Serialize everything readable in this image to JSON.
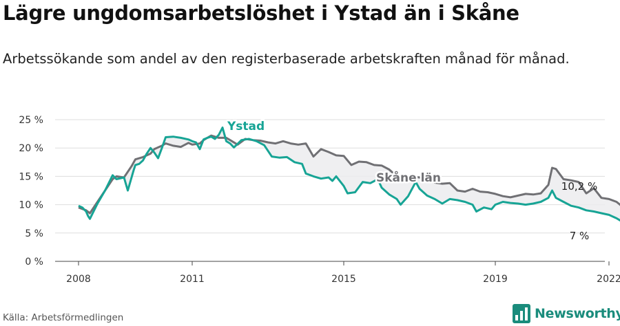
{
  "header": {
    "title": "Lägre ungdomsarbetslöshet i Ystad än i Skåne",
    "subtitle": "Arbetssökande som andel av den registerbaserade arbetskraften månad för månad."
  },
  "footer": {
    "source": "Källa: Arbetsförmedlingen",
    "brand": "Newsworthy"
  },
  "colors": {
    "ystad": "#17a495",
    "skane": "#707074",
    "grid": "#dddddd",
    "brand": "#1a8c7c"
  },
  "chart_data": {
    "type": "line",
    "title": "Lägre ungdomsarbetslöshet i Ystad än i Skåne",
    "xlabel": "",
    "ylabel": "",
    "xlim": [
      2008,
      2022.6
    ],
    "ylim": [
      0,
      25
    ],
    "y_ticks": [
      0,
      5,
      10,
      15,
      20,
      25
    ],
    "y_tick_labels": [
      "0 %",
      "5 %",
      "10 %",
      "15 %",
      "20 %",
      "25 %"
    ],
    "x_ticks": [
      2008,
      2011,
      2015,
      2019,
      2022
    ],
    "x_tick_labels": [
      "2008",
      "2011",
      "2015",
      "2019",
      "2022"
    ],
    "grid": true,
    "series": [
      {
        "name": "Ystad",
        "label": "Ystad",
        "end_label": "7 %",
        "x": [
          2008.0,
          2008.1,
          2008.2,
          2008.25,
          2008.3,
          2008.5,
          2008.7,
          2008.9,
          2009.0,
          2009.2,
          2009.3,
          2009.45,
          2009.5,
          2009.6,
          2009.7,
          2009.8,
          2009.9,
          2010.0,
          2010.1,
          2010.2,
          2010.3,
          2010.5,
          2010.7,
          2010.9,
          2011.0,
          2011.1,
          2011.2,
          2011.3,
          2011.4,
          2011.5,
          2011.6,
          2011.7,
          2011.8,
          2011.9,
          2012.0,
          2012.1,
          2012.3,
          2012.5,
          2012.7,
          2012.9,
          2013.0,
          2013.1,
          2013.3,
          2013.5,
          2013.7,
          2013.9,
          2014.0,
          2014.2,
          2014.4,
          2014.6,
          2014.7,
          2014.8,
          2015.0,
          2015.1,
          2015.3,
          2015.5,
          2015.7,
          2015.9,
          2016.0,
          2016.2,
          2016.4,
          2016.5,
          2016.7,
          2016.9,
          2017.0,
          2017.2,
          2017.4,
          2017.6,
          2017.8,
          2018.0,
          2018.2,
          2018.4,
          2018.5,
          2018.7,
          2018.9,
          2019.0,
          2019.2,
          2019.4,
          2019.6,
          2019.8,
          2020.0,
          2020.2,
          2020.4,
          2020.5,
          2020.6,
          2020.8,
          2021.0,
          2021.2,
          2021.4,
          2021.6,
          2021.8,
          2022.0,
          2022.2,
          2022.3,
          2022.4,
          2022.55
        ],
        "values": [
          9.8,
          9.5,
          8.8,
          8.0,
          7.5,
          10.2,
          12.5,
          15.2,
          14.5,
          14.8,
          12.5,
          16.0,
          17.0,
          17.2,
          17.8,
          19.0,
          20.0,
          19.2,
          18.2,
          20.0,
          21.9,
          22.0,
          21.8,
          21.5,
          21.2,
          21.0,
          19.8,
          21.5,
          21.8,
          22.0,
          21.6,
          22.3,
          23.6,
          21.2,
          20.8,
          20.1,
          21.4,
          21.6,
          21.2,
          20.5,
          19.5,
          18.5,
          18.3,
          18.4,
          17.5,
          17.2,
          15.5,
          15.0,
          14.6,
          14.8,
          14.2,
          15.0,
          13.3,
          12.0,
          12.2,
          14.0,
          13.8,
          14.5,
          13.0,
          11.8,
          11.0,
          10.0,
          11.5,
          14.0,
          12.8,
          11.6,
          11.0,
          10.2,
          11.0,
          10.8,
          10.5,
          10.0,
          8.8,
          9.5,
          9.2,
          10.0,
          10.5,
          10.3,
          10.2,
          10.0,
          10.2,
          10.5,
          11.2,
          12.5,
          11.2,
          10.5,
          9.8,
          9.5,
          9.0,
          8.8,
          8.5,
          8.2,
          7.6,
          7.2,
          6.8,
          7.0
        ]
      },
      {
        "name": "Skåne län",
        "label": "Skåne län",
        "end_label": "10,2 %",
        "x": [
          2008.0,
          2008.2,
          2008.3,
          2008.5,
          2008.7,
          2008.9,
          2009.0,
          2009.2,
          2009.4,
          2009.5,
          2009.7,
          2009.9,
          2010.0,
          2010.2,
          2010.3,
          2010.5,
          2010.7,
          2010.9,
          2011.0,
          2011.2,
          2011.3,
          2011.5,
          2011.7,
          2011.9,
          2012.0,
          2012.2,
          2012.4,
          2012.6,
          2012.8,
          2013.0,
          2013.2,
          2013.4,
          2013.6,
          2013.8,
          2014.0,
          2014.2,
          2014.4,
          2014.6,
          2014.8,
          2015.0,
          2015.2,
          2015.4,
          2015.6,
          2015.8,
          2016.0,
          2016.2,
          2016.4,
          2016.6,
          2016.8,
          2017.0,
          2017.2,
          2017.4,
          2017.6,
          2017.8,
          2018.0,
          2018.2,
          2018.4,
          2018.6,
          2018.8,
          2019.0,
          2019.2,
          2019.4,
          2019.6,
          2019.8,
          2020.0,
          2020.2,
          2020.4,
          2020.5,
          2020.6,
          2020.8,
          2021.0,
          2021.2,
          2021.4,
          2021.6,
          2021.8,
          2022.0,
          2022.2,
          2022.35,
          2022.55
        ],
        "values": [
          9.5,
          9.0,
          8.5,
          10.5,
          12.5,
          14.5,
          15.0,
          14.8,
          16.8,
          18.0,
          18.4,
          19.0,
          19.8,
          20.4,
          20.8,
          20.4,
          20.2,
          20.9,
          20.6,
          20.8,
          21.4,
          22.2,
          21.8,
          21.8,
          21.4,
          20.6,
          21.6,
          21.4,
          21.3,
          21.0,
          20.8,
          21.2,
          20.8,
          20.6,
          20.8,
          18.5,
          19.8,
          19.3,
          18.7,
          18.6,
          17.0,
          17.6,
          17.5,
          17.0,
          16.9,
          16.2,
          15.0,
          15.3,
          14.9,
          14.8,
          14.5,
          13.9,
          13.7,
          13.8,
          12.5,
          12.3,
          12.8,
          12.3,
          12.2,
          11.9,
          11.5,
          11.3,
          11.6,
          11.9,
          11.8,
          12.0,
          13.5,
          16.5,
          16.3,
          14.5,
          14.3,
          14.0,
          12.0,
          12.9,
          11.2,
          11.0,
          10.5,
          9.7,
          10.2
        ]
      }
    ]
  }
}
